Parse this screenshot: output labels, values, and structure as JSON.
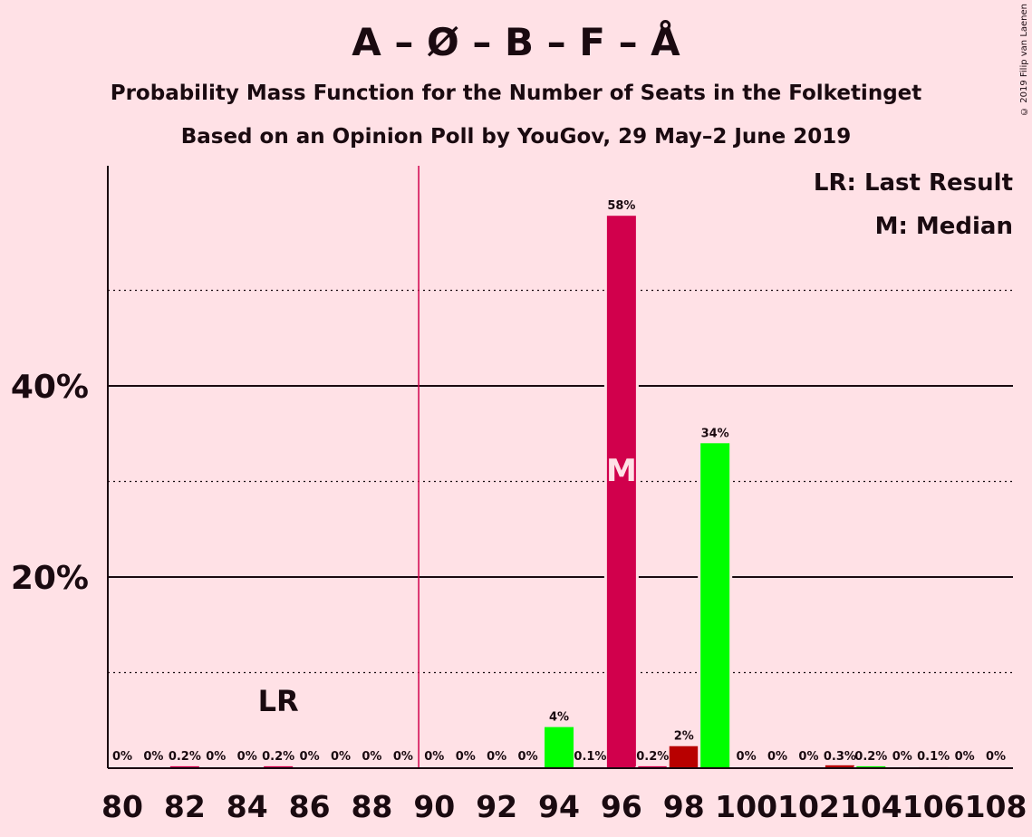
{
  "header": {
    "title": "A – Ø – B – F – Å",
    "subtitle1": "Probability Mass Function for the Number of Seats in the Folketinget",
    "subtitle2": "Based on an Opinion Poll by YouGov, 29 May–2 June 2019",
    "copyright": "© 2019 Filip van Laenen"
  },
  "legend": {
    "lr": "LR: Last Result",
    "median": "M: Median"
  },
  "markers": {
    "last_result_label": "LR",
    "median_label": "M",
    "last_result_seat": 85,
    "median_seat": 96,
    "majority_seat": 90
  },
  "colors": {
    "background": "#ffe1e6",
    "party_primary": "#d1004c",
    "party_dark": "#b80000",
    "party_green": "#00ff00",
    "majority_line": "#d1004c"
  },
  "chart_data": {
    "type": "bar",
    "title": "A – Ø – B – F – Å",
    "xlabel": "",
    "ylabel": "",
    "ylim": [
      0,
      62
    ],
    "yticks": [
      20,
      40
    ],
    "ytick_labels": [
      "20%",
      "40%"
    ],
    "minor_gridlines": [
      10,
      30,
      50
    ],
    "xtick_labels": [
      "80",
      "82",
      "84",
      "86",
      "88",
      "90",
      "92",
      "94",
      "96",
      "98",
      "100",
      "102",
      "104",
      "106",
      "108"
    ],
    "categories": [
      80,
      81,
      82,
      83,
      84,
      85,
      86,
      87,
      88,
      89,
      90,
      91,
      92,
      93,
      94,
      95,
      96,
      97,
      98,
      99,
      100,
      101,
      102,
      103,
      104,
      105,
      106,
      107,
      108
    ],
    "values": [
      0,
      0,
      0.2,
      0,
      0,
      0.2,
      0,
      0,
      0,
      0,
      0,
      0,
      0,
      0,
      4.3,
      0.1,
      57.8,
      0.2,
      2.3,
      34,
      0,
      0,
      0,
      0.3,
      0.2,
      0,
      0.1,
      0,
      0
    ],
    "labels": [
      "0%",
      "0%",
      "0.2%",
      "0%",
      "0%",
      "0.2%",
      "0%",
      "0%",
      "0%",
      "0%",
      "0%",
      "0%",
      "0%",
      "0%",
      "4%",
      "0.1%",
      "58%",
      "0.2%",
      "2%",
      "34%",
      "0%",
      "0%",
      "0%",
      "0.3%",
      "0.2%",
      "0%",
      "0.1%",
      "0%",
      "0%"
    ],
    "bar_colors": [
      "#d1004c",
      "#d1004c",
      "#d1004c",
      "#d1004c",
      "#d1004c",
      "#d1004c",
      "#d1004c",
      "#d1004c",
      "#d1004c",
      "#d1004c",
      "#d1004c",
      "#d1004c",
      "#d1004c",
      "#d1004c",
      "#00ff00",
      "#d1004c",
      "#d1004c",
      "#d1004c",
      "#b80000",
      "#00ff00",
      "#d1004c",
      "#d1004c",
      "#d1004c",
      "#b80000",
      "#00ff00",
      "#d1004c",
      "#d1004c",
      "#d1004c",
      "#d1004c"
    ],
    "grid": true,
    "legend_position": "top-right"
  }
}
